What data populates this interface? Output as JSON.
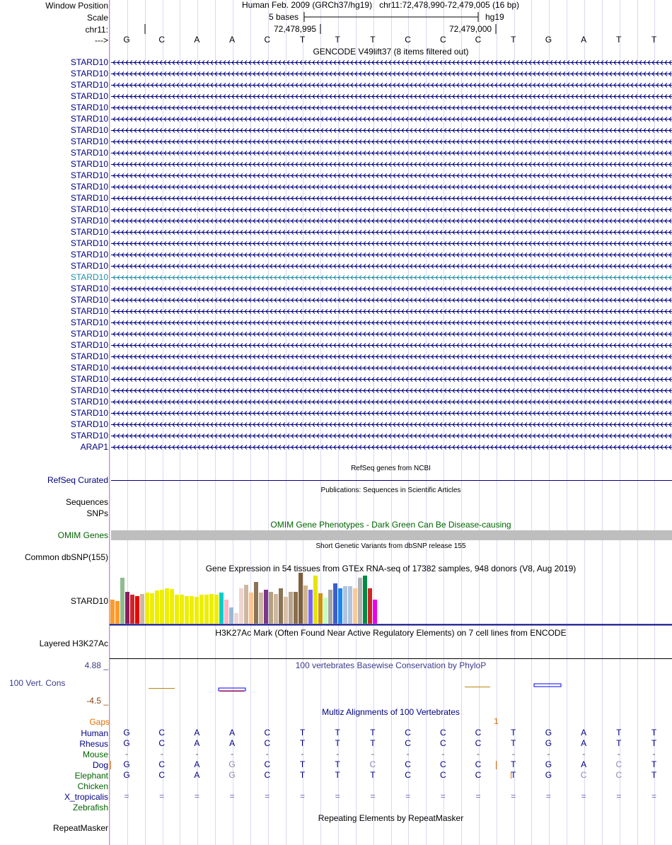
{
  "ruler": {
    "window_position_label": "Window Position",
    "scale_label": "Scale",
    "chrom_label": "chr11:",
    "seq_label": "--->",
    "assembly_text": "Human Feb. 2009 (GRCh37/hg19)   chr11:72,478,990-72,479,005 (16 bp)",
    "scale_text": "5 bases",
    "db_text": "hg19",
    "pos1": "72,478,995",
    "pos2": "72,479,000",
    "bases": [
      "G",
      "C",
      "A",
      "A",
      "C",
      "T",
      "T",
      "T",
      "C",
      "C",
      "C",
      "T",
      "G",
      "A",
      "T",
      "T"
    ]
  },
  "gencode": {
    "title": "GENCODE V49lift37 (8 items filtered out)",
    "genes": [
      "STARD10",
      "STARD10",
      "STARD10",
      "STARD10",
      "STARD10",
      "STARD10",
      "STARD10",
      "STARD10",
      "STARD10",
      "STARD10",
      "STARD10",
      "STARD10",
      "STARD10",
      "STARD10",
      "STARD10",
      "STARD10",
      "STARD10",
      "STARD10",
      "STARD10",
      "STARD10",
      "STARD10",
      "STARD10",
      "STARD10",
      "STARD10",
      "STARD10",
      "STARD10",
      "STARD10",
      "STARD10",
      "STARD10",
      "STARD10",
      "STARD10",
      "STARD10",
      "STARD10",
      "STARD10",
      "ARAP1"
    ],
    "highlight_index": 19
  },
  "refseq": {
    "title": "RefSeq genes from NCBI",
    "label": "RefSeq Curated"
  },
  "publications": {
    "title": "Publications: Sequences in Scientific Articles",
    "label1": "Sequences",
    "label2": "SNPs"
  },
  "omim": {
    "title": "OMIM Gene Phenotypes - Dark Green Can Be Disease-causing",
    "label": "OMIM Genes"
  },
  "dbsnp": {
    "title": "Short Genetic Variants from dbSNP release 155",
    "label": "Common dbSNP(155)"
  },
  "gtex": {
    "title": "Gene Expression in 54 tissues from GTEx RNA-seq of 17382 samples, 948 donors (V8, Aug 2019)",
    "label": "STARD10",
    "values": [
      0.45,
      0.42,
      0.86,
      0.6,
      0.55,
      0.52,
      0.56,
      0.58,
      0.57,
      0.62,
      0.64,
      0.67,
      0.65,
      0.55,
      0.55,
      0.52,
      0.52,
      0.5,
      0.55,
      0.54,
      0.56,
      0.54,
      0.58,
      0.45,
      0.31,
      0.2,
      0.66,
      0.73,
      0.58,
      0.78,
      0.58,
      0.64,
      0.6,
      0.56,
      0.66,
      0.5,
      0.6,
      0.6,
      0.96,
      0.72,
      0.64,
      0.9,
      0.57,
      0.49,
      0.64,
      0.76,
      0.66,
      0.7,
      0.7,
      0.66,
      0.86,
      0.9,
      0.67,
      0.45
    ],
    "colors": [
      "#ff9a2a",
      "#ff9a2a",
      "#8fbc8f",
      "#8b1c62",
      "#cd2626",
      "#ee0000",
      "#cdb79e",
      "#eeee00",
      "#eeee00",
      "#eeee00",
      "#eeee00",
      "#eeee00",
      "#eeee00",
      "#eeee00",
      "#eeee00",
      "#eeee00",
      "#eeee00",
      "#eeee00",
      "#eeee00",
      "#eeee00",
      "#eeee00",
      "#eeee00",
      "#00ced1",
      "#ffb6c1",
      "#9ab9d8",
      "#ecd6d6",
      "#eed5d2",
      "#cdb79e",
      "#ffc48a",
      "#8b7355",
      "#cdb79e",
      "#7a378b",
      "#b5a07e",
      "#cdb79e",
      "#8b7355",
      "#d8bfa8",
      "#b9a48e",
      "#8a6f4d",
      "#7d5f3b",
      "#d2b48c",
      "#7a67ee",
      "#e5e500",
      "#cd950c",
      "#c1ffc1",
      "#a6a6a6",
      "#3a5fcd",
      "#1c86ee",
      "#b0c4de",
      "#b0c4de",
      "#fcc995",
      "#b3b3b3",
      "#008b45",
      "#cd2626",
      "#ee00ee"
    ]
  },
  "h3k27ac": {
    "title": "H3K27Ac Mark (Often Found Near Active Regulatory Elements) on 7 cell lines from ENCODE",
    "label": "Layered H3K27Ac"
  },
  "phylop": {
    "title": "100 vertebrates Basewise Conservation by PhyloP",
    "label": "100 Vert. Cons",
    "max": "4.88 _",
    "min": "-4.5 _"
  },
  "multiz": {
    "title": "Multiz Alignments of 100 Vertebrates",
    "gaps_label": "Gaps",
    "gap_count": "1",
    "species": [
      {
        "name": "Human",
        "color": "#000080",
        "bases": [
          "G",
          "C",
          "A",
          "A",
          "C",
          "T",
          "T",
          "T",
          "C",
          "C",
          "C",
          "T",
          "G",
          "A",
          "T",
          "T"
        ]
      },
      {
        "name": "Rhesus",
        "color": "#000080",
        "bases": [
          "G",
          "C",
          "A",
          "A",
          "C",
          "T",
          "T",
          "T",
          "C",
          "C",
          "C",
          "T",
          "G",
          "A",
          "T",
          "T"
        ]
      },
      {
        "name": "Mouse",
        "color": "#006400",
        "bases": [
          "-",
          "-",
          "-",
          "-",
          "-",
          "-",
          "-",
          "-",
          "-",
          "-",
          "-",
          "-",
          "-",
          "-",
          "-",
          "-"
        ]
      },
      {
        "name": "Dog",
        "color": "#000080",
        "bases": [
          "G",
          "C",
          "A",
          "G",
          "C",
          "T",
          "T",
          "C",
          "C",
          "C",
          "C",
          "T",
          "G",
          "A",
          "C",
          "T"
        ]
      },
      {
        "name": "Elephant",
        "color": "#006400",
        "bases": [
          "G",
          "C",
          "A",
          "G",
          "C",
          "T",
          "T",
          "T",
          "C",
          "C",
          "C",
          "T",
          "G",
          "C",
          "C",
          "T"
        ]
      },
      {
        "name": "Chicken",
        "color": "#006400",
        "bases": []
      },
      {
        "name": "X_tropicalis",
        "color": "#000080",
        "bases": [
          "=",
          "=",
          "=",
          "=",
          "=",
          "=",
          "=",
          "=",
          "=",
          "=",
          "=",
          "=",
          "=",
          "=",
          "=",
          "="
        ]
      },
      {
        "name": "Zebrafish",
        "color": "#006400",
        "bases": []
      }
    ]
  },
  "repeatmasker": {
    "title": "Repeating Elements by RepeatMasker",
    "label": "RepeatMasker"
  }
}
